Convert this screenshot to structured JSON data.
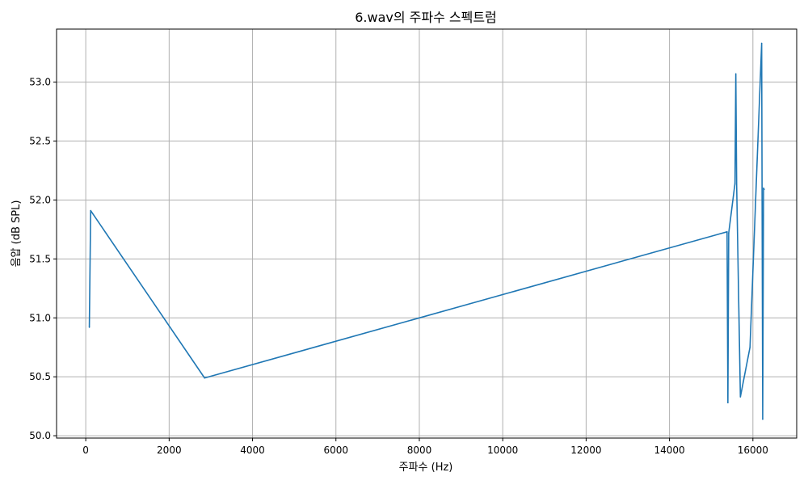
{
  "chart_data": {
    "type": "line",
    "title": "6.wav의 주파수 스펙트럼",
    "xlabel": "주파수 (Hz)",
    "ylabel": "음압 (dB SPL)",
    "xlim": [
      -700,
      17050
    ],
    "ylim": [
      49.98,
      53.45
    ],
    "xticks": [
      0,
      2000,
      4000,
      6000,
      8000,
      10000,
      12000,
      14000,
      16000
    ],
    "xtick_labels": [
      "0",
      "2000",
      "4000",
      "6000",
      "8000",
      "10000",
      "12000",
      "14000",
      "16000"
    ],
    "yticks": [
      50.0,
      50.5,
      51.0,
      51.5,
      52.0,
      52.5,
      53.0
    ],
    "ytick_labels": [
      "50.0",
      "50.5",
      "51.0",
      "51.5",
      "52.0",
      "52.5",
      "53.0"
    ],
    "grid": true,
    "legend": "none",
    "series": [
      {
        "color": "#1f77b4",
        "x": [
          86,
          118,
          2850,
          15380,
          15400,
          15420,
          15570,
          15590,
          15610,
          15700,
          15930,
          16210,
          16235,
          16255,
          16270
        ],
        "y": [
          50.92,
          51.91,
          50.49,
          51.73,
          50.28,
          51.72,
          52.14,
          53.07,
          52.13,
          50.33,
          50.75,
          53.33,
          50.14,
          52.1,
          52.09
        ]
      }
    ]
  }
}
